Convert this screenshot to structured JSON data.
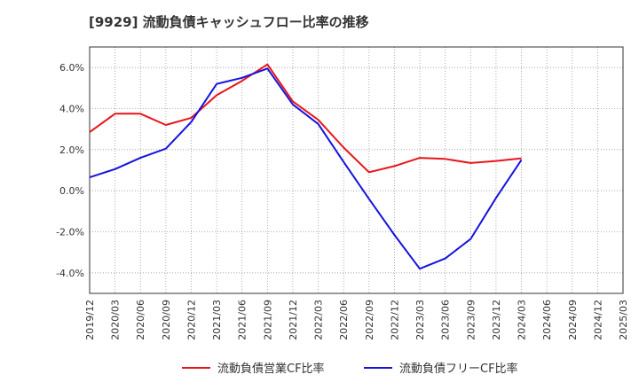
{
  "chart_data": {
    "type": "line",
    "title": "[9929]  流動負債キャッシュフロー比率の推移",
    "xlabel": "",
    "ylabel": "",
    "ylim": [
      -5,
      7
    ],
    "yticks": [
      6,
      4,
      2,
      0,
      -2,
      -4
    ],
    "ytick_labels": [
      "6.0%",
      "4.0%",
      "2.0%",
      "0.0%",
      "-2.0%",
      "-4.0%"
    ],
    "categories": [
      "2019/12",
      "2020/03",
      "2020/06",
      "2020/09",
      "2020/12",
      "2021/03",
      "2021/06",
      "2021/09",
      "2021/12",
      "2022/03",
      "2022/06",
      "2022/09",
      "2022/12",
      "2023/03",
      "2023/06",
      "2023/09",
      "2023/12",
      "2024/03",
      "2024/06",
      "2024/09",
      "2024/12",
      "2025/03"
    ],
    "grid": true,
    "legend_position": "bottom",
    "series": [
      {
        "name": "流動負債営業CF比率",
        "color": "#e8141c",
        "values": [
          2.85,
          3.75,
          3.75,
          3.2,
          3.55,
          4.65,
          5.35,
          6.15,
          4.35,
          3.45,
          2.1,
          0.9,
          1.2,
          1.6,
          1.55,
          1.35,
          1.45,
          1.58,
          null,
          null,
          null,
          null
        ]
      },
      {
        "name": "流動負債フリーCF比率",
        "color": "#1414dc",
        "values": [
          0.65,
          1.05,
          1.6,
          2.05,
          3.35,
          5.2,
          5.5,
          5.95,
          4.2,
          3.25,
          1.4,
          -0.4,
          -2.15,
          -3.8,
          -3.3,
          -2.35,
          -0.35,
          1.5,
          null,
          null,
          null,
          null
        ]
      }
    ]
  }
}
